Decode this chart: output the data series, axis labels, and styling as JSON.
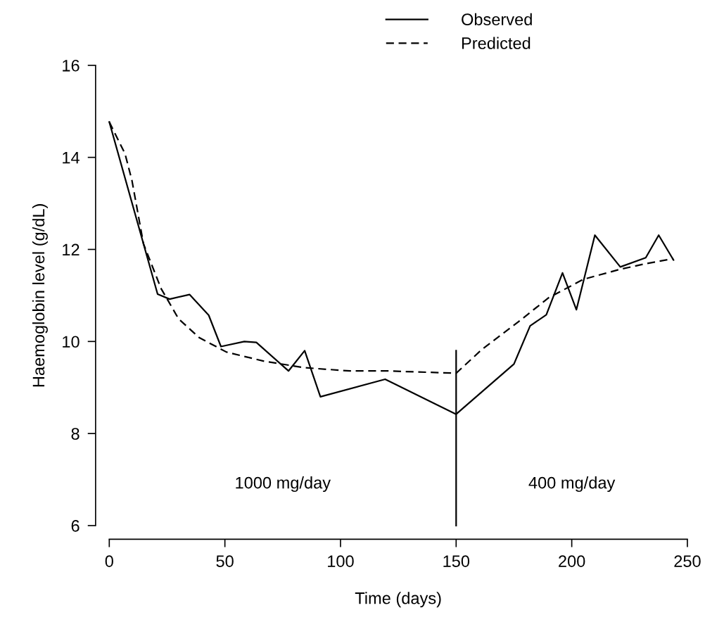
{
  "chart_data": {
    "type": "line",
    "xlabel": "Time (days)",
    "ylabel": "Haemoglobin level (g/dL)",
    "xlim": [
      0,
      250
    ],
    "ylim": [
      6,
      16
    ],
    "xticks": [
      0,
      50,
      100,
      150,
      200,
      250
    ],
    "yticks": [
      6,
      8,
      10,
      12,
      14,
      16
    ],
    "grid": false,
    "legend": "top right",
    "series": [
      {
        "name": "Observed",
        "color": "#000000",
        "line_style": "solid",
        "x": [
          0,
          20.9,
          26.1,
          34.7,
          43,
          48.3,
          58.4,
          63.6,
          77.5,
          84.5,
          91.3,
          119.3,
          150,
          175,
          182,
          189,
          196,
          202,
          210,
          221,
          232,
          237.6,
          244
        ],
        "values": [
          14.77,
          11.03,
          10.92,
          11.02,
          10.57,
          9.89,
          10.0,
          9.98,
          9.36,
          9.8,
          8.8,
          9.18,
          8.42,
          9.51,
          10.34,
          10.58,
          11.49,
          10.69,
          12.31,
          11.62,
          11.82,
          12.31,
          11.77
        ]
      },
      {
        "name": "Predicted",
        "color": "#000000",
        "line_style": "dashed",
        "x": [
          0,
          6.8,
          9.8,
          14.8,
          22.4,
          30,
          39,
          50.7,
          67,
          84.5,
          104,
          120.5,
          150,
          161,
          177,
          190,
          205,
          221,
          232,
          244
        ],
        "values": [
          14.77,
          14.08,
          13.5,
          12.12,
          11.15,
          10.49,
          10.08,
          9.77,
          9.57,
          9.43,
          9.36,
          9.36,
          9.31,
          9.82,
          10.43,
          10.95,
          11.35,
          11.57,
          11.69,
          11.8
        ]
      },
      {
        "color": "#000000",
        "line_style": "solid",
        "x": [
          150,
          150
        ],
        "values": [
          6,
          9.8
        ]
      }
    ],
    "annotations": [
      "1000 mg/day",
      "400 mg/day"
    ]
  }
}
